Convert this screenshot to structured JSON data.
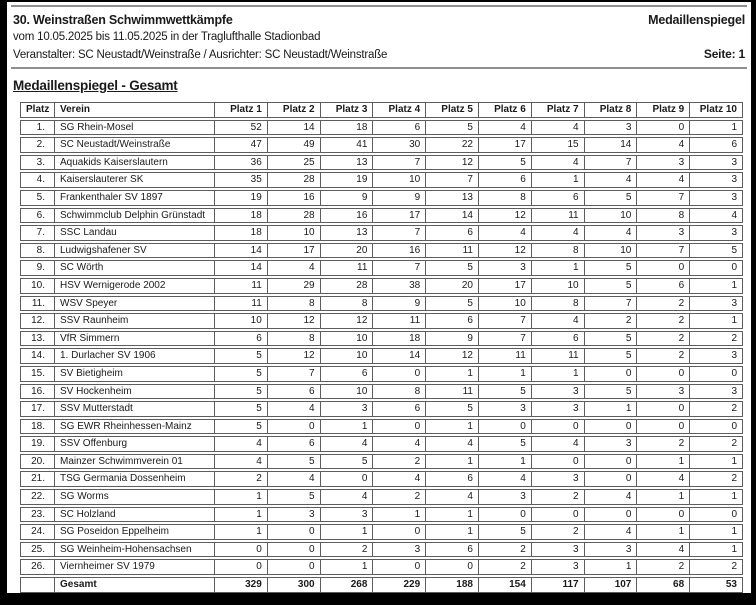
{
  "header": {
    "title": "30. Weinstraßen Schwimmwettkämpfe",
    "right_title": "Medaillenspiegel",
    "date_line": "vom 10.05.2025 bis 11.05.2025 in der Traglufthalle Stadionbad",
    "organizer_line": "Veranstalter: SC Neustadt/Weinstraße / Ausrichter: SC Neustadt/Weinstraße",
    "page_label": "Seite: 1"
  },
  "section": {
    "title": "Medaillenspiegel - Gesamt"
  },
  "table": {
    "headers": [
      "Platz",
      "Verein",
      "Platz 1",
      "Platz 2",
      "Platz 3",
      "Platz 4",
      "Platz 5",
      "Platz 6",
      "Platz 7",
      "Platz 8",
      "Platz 9",
      "Platz 10"
    ],
    "rows": [
      {
        "rank": "1.",
        "club": "SG Rhein-Mosel",
        "values": [
          52,
          14,
          18,
          6,
          5,
          4,
          4,
          3,
          0,
          1
        ]
      },
      {
        "rank": "2.",
        "club": "SC Neustadt/Weinstraße",
        "values": [
          47,
          49,
          41,
          30,
          22,
          17,
          15,
          14,
          4,
          6
        ]
      },
      {
        "rank": "3.",
        "club": "Aquakids Kaiserslautern",
        "values": [
          36,
          25,
          13,
          7,
          12,
          5,
          4,
          7,
          3,
          3
        ]
      },
      {
        "rank": "4.",
        "club": "Kaiserslauterer SK",
        "values": [
          35,
          28,
          19,
          10,
          7,
          6,
          1,
          4,
          4,
          3
        ]
      },
      {
        "rank": "5.",
        "club": "Frankenthaler SV 1897",
        "values": [
          19,
          16,
          9,
          9,
          13,
          8,
          6,
          5,
          7,
          3
        ]
      },
      {
        "rank": "6.",
        "club": "Schwimmclub Delphin Grünstadt",
        "values": [
          18,
          28,
          16,
          17,
          14,
          12,
          11,
          10,
          8,
          4
        ]
      },
      {
        "rank": "7.",
        "club": "SSC Landau",
        "values": [
          18,
          10,
          13,
          7,
          6,
          4,
          4,
          4,
          3,
          3
        ]
      },
      {
        "rank": "8.",
        "club": "Ludwigshafener SV",
        "values": [
          14,
          17,
          20,
          16,
          11,
          12,
          8,
          10,
          7,
          5
        ]
      },
      {
        "rank": "9.",
        "club": "SC Wörth",
        "values": [
          14,
          4,
          11,
          7,
          5,
          3,
          1,
          5,
          0,
          0
        ]
      },
      {
        "rank": "10.",
        "club": "HSV Wernigerode 2002",
        "values": [
          11,
          29,
          28,
          38,
          20,
          17,
          10,
          5,
          6,
          1
        ]
      },
      {
        "rank": "11.",
        "club": "WSV Speyer",
        "values": [
          11,
          8,
          8,
          9,
          5,
          10,
          8,
          7,
          2,
          3
        ]
      },
      {
        "rank": "12.",
        "club": "SSV Raunheim",
        "values": [
          10,
          12,
          12,
          11,
          6,
          7,
          4,
          2,
          2,
          1
        ]
      },
      {
        "rank": "13.",
        "club": "VfR Simmern",
        "values": [
          6,
          8,
          10,
          18,
          9,
          7,
          6,
          5,
          2,
          2
        ]
      },
      {
        "rank": "14.",
        "club": "1. Durlacher SV 1906",
        "values": [
          5,
          12,
          10,
          14,
          12,
          11,
          11,
          5,
          2,
          3
        ]
      },
      {
        "rank": "15.",
        "club": "SV Bietigheim",
        "values": [
          5,
          7,
          6,
          0,
          1,
          1,
          1,
          0,
          0,
          0
        ]
      },
      {
        "rank": "16.",
        "club": "SV Hockenheim",
        "values": [
          5,
          6,
          10,
          8,
          11,
          5,
          3,
          5,
          3,
          3
        ]
      },
      {
        "rank": "17.",
        "club": "SSV Mutterstadt",
        "values": [
          5,
          4,
          3,
          6,
          5,
          3,
          3,
          1,
          0,
          2
        ]
      },
      {
        "rank": "18.",
        "club": "SG EWR Rheinhessen-Mainz",
        "values": [
          5,
          0,
          1,
          0,
          1,
          0,
          0,
          0,
          0,
          0
        ]
      },
      {
        "rank": "19.",
        "club": "SSV Offenburg",
        "values": [
          4,
          6,
          4,
          4,
          4,
          5,
          4,
          3,
          2,
          2
        ]
      },
      {
        "rank": "20.",
        "club": "Mainzer Schwimmverein 01",
        "values": [
          4,
          5,
          5,
          2,
          1,
          1,
          0,
          0,
          1,
          1
        ]
      },
      {
        "rank": "21.",
        "club": "TSG Germania Dossenheim",
        "values": [
          2,
          4,
          0,
          4,
          6,
          4,
          3,
          0,
          4,
          2
        ]
      },
      {
        "rank": "22.",
        "club": "SG Worms",
        "values": [
          1,
          5,
          4,
          2,
          4,
          3,
          2,
          4,
          1,
          1
        ]
      },
      {
        "rank": "23.",
        "club": "SC Holzland",
        "values": [
          1,
          3,
          3,
          1,
          1,
          0,
          0,
          0,
          0,
          0
        ]
      },
      {
        "rank": "24.",
        "club": "SG Poseidon Eppelheim",
        "values": [
          1,
          0,
          1,
          0,
          1,
          5,
          2,
          4,
          1,
          1
        ]
      },
      {
        "rank": "25.",
        "club": "SG Weinheim-Hohensachsen",
        "values": [
          0,
          0,
          2,
          3,
          6,
          2,
          3,
          3,
          4,
          1
        ]
      },
      {
        "rank": "26.",
        "club": "Viernheimer SV 1979",
        "values": [
          0,
          0,
          1,
          0,
          0,
          2,
          3,
          1,
          2,
          2
        ]
      }
    ],
    "footer": {
      "label": "Gesamt",
      "values": [
        329,
        300,
        268,
        229,
        188,
        154,
        117,
        107,
        68,
        53
      ]
    }
  },
  "colors": {
    "table_border": "#5d5d5d",
    "rule": "#8f8f8f",
    "text": "#1a1a1a",
    "frame": "#000000"
  }
}
